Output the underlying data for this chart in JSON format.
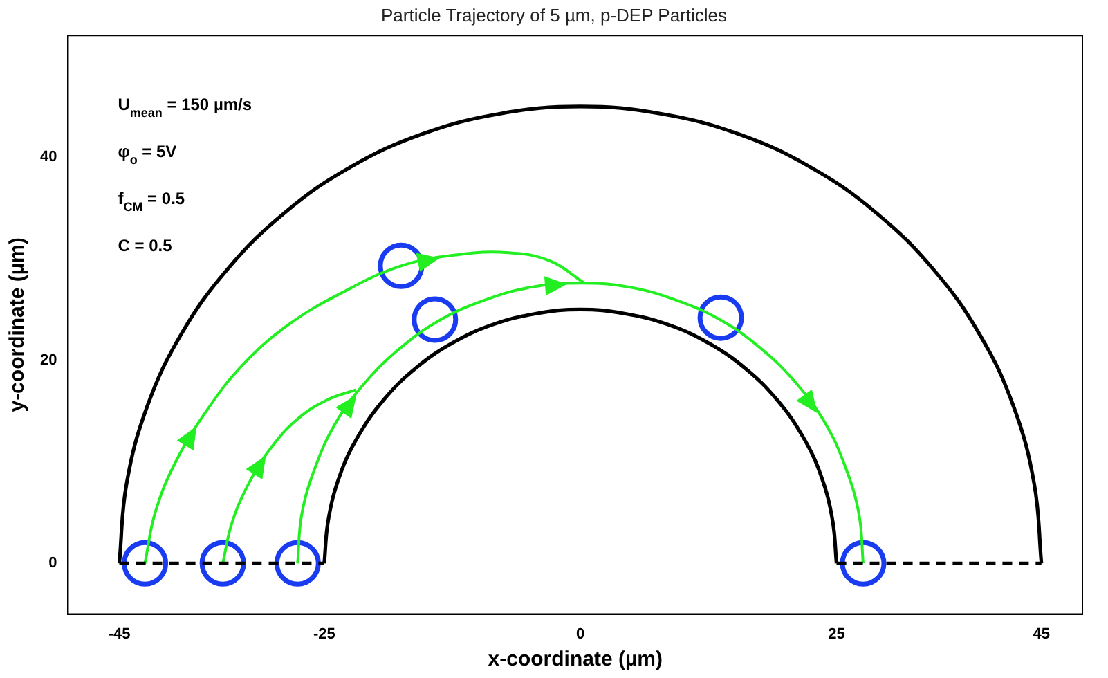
{
  "chart_data": {
    "type": "line",
    "title": "Particle Trajectory of 5 µm, p-DEP Particles",
    "xlabel": "x-coordinate (µm)",
    "ylabel": "y-coordinate (µm)",
    "annotations": [
      "U$_{mean}$ = 150 µm/s",
      "φ$_{o}$ = 5V",
      "f$_{CM}$ = 0.5",
      "C = 0.5"
    ],
    "xlim": [
      -50,
      49
    ],
    "ylim": [
      -5,
      52
    ],
    "xticks": [
      -45,
      -25,
      0,
      25,
      45
    ],
    "yticks": [
      0,
      20,
      40
    ],
    "grid": false,
    "legend": false,
    "series": [
      {
        "color": "#000000",
        "x": [
          -45,
          -44.3,
          -42.3,
          -39,
          -34.5,
          -28.9,
          -22.5,
          -15.4,
          -7.8,
          0,
          7.8,
          15.4,
          22.5,
          28.9,
          34.5,
          39,
          42.3,
          44.3,
          45
        ],
        "values": [
          0,
          7.8,
          15.4,
          22.5,
          28.9,
          34.5,
          39,
          42.3,
          44.3,
          45,
          44.3,
          42.3,
          39,
          34.5,
          28.9,
          22.5,
          15.4,
          7.8,
          0
        ]
      },
      {
        "color": "#000000",
        "x": [
          -25,
          -24.6,
          -23.5,
          -21.7,
          -19.2,
          -16.1,
          -12.5,
          -8.6,
          -4.3,
          0,
          4.3,
          8.6,
          12.5,
          16.1,
          19.2,
          21.7,
          23.5,
          24.6,
          25
        ],
        "values": [
          0,
          4.3,
          8.6,
          12.5,
          16.1,
          19.2,
          21.7,
          23.5,
          24.6,
          25,
          24.6,
          23.5,
          21.7,
          19.2,
          16.1,
          12.5,
          8.6,
          4.3,
          0
        ]
      },
      {
        "color": "#000000",
        "line_style": "dashed",
        "x": [
          -45,
          -25
        ],
        "values": [
          0,
          0
        ]
      },
      {
        "color": "#000000",
        "line_style": "dashed",
        "x": [
          25,
          45
        ],
        "values": [
          0,
          0
        ]
      },
      {
        "color": "#22ee22",
        "x": [
          -27.6,
          -27.2,
          -25.9,
          -23.9,
          -21.1,
          -17.7,
          -13.8,
          -9.4,
          -4.8,
          0,
          4.8,
          9.4,
          13.8,
          17.7,
          21.1,
          23.9,
          25.9,
          27.2,
          27.6
        ],
        "values": [
          0,
          4.8,
          9.4,
          13.8,
          17.7,
          21.1,
          23.9,
          25.9,
          27.2,
          27.6,
          27.2,
          25.9,
          23.9,
          21.1,
          17.7,
          13.8,
          9.4,
          4.8,
          0
        ]
      },
      {
        "color": "#22ee22",
        "x": [
          -42.5,
          -41.5,
          -39.5,
          -36.5,
          -33,
          -28.5,
          -23,
          -17.5,
          -12,
          -7,
          -3,
          0.4
        ],
        "values": [
          0,
          5,
          10,
          15,
          19.5,
          23.5,
          26.8,
          29.3,
          30.4,
          30.6,
          29.8,
          27.6
        ]
      },
      {
        "color": "#22ee22",
        "x": [
          -34.9,
          -34,
          -32.3,
          -30.1,
          -27.5,
          -24.7,
          -21.9
        ],
        "values": [
          0,
          4,
          8,
          11.5,
          14.3,
          16.1,
          17.1
        ]
      },
      {
        "type": "scatter",
        "marker": "circle",
        "color": "#1a3cf0",
        "x": [
          -42.5,
          -34.9,
          -27.6,
          -17.5,
          -14.2,
          13.7,
          27.6
        ],
        "values": [
          0,
          0,
          0,
          29.3,
          24,
          24.2,
          0
        ]
      }
    ]
  }
}
